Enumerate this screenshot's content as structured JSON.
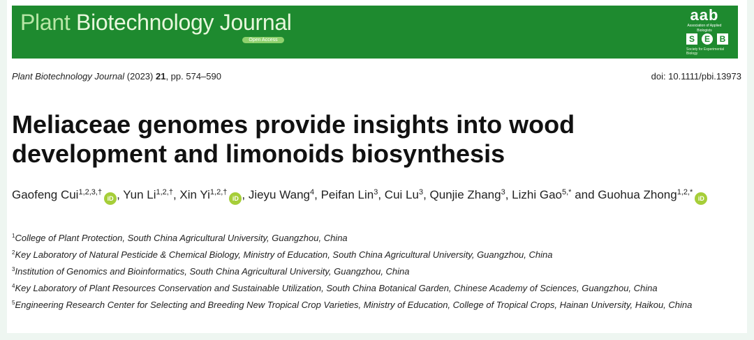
{
  "header": {
    "journal_plant": "Plant",
    "journal_rest": " Biotechnology Journal",
    "open_access": "Open Access",
    "aab_logo": "aab",
    "aab_sub": "Association of Applied Biologists",
    "seb_letters": [
      "S",
      "E",
      "B"
    ],
    "seb_sub": "Society for Experimental Biology"
  },
  "citation": {
    "journal": "Plant Biotechnology Journal",
    "year": " (2023) ",
    "volume": "21",
    "pages": ", pp. 574–590",
    "doi": "doi: 10.1111/pbi.13973"
  },
  "title": {
    "line1": "Meliaceae genomes provide insights into wood",
    "line2": "development and limonoids biosynthesis"
  },
  "orcid_label": "iD",
  "authors": [
    {
      "name": "Gaofeng Cui",
      "sup": "1,2,3,†",
      "orcid": true,
      "sep": ", "
    },
    {
      "name": "Yun Li",
      "sup": "1,2,†",
      "orcid": false,
      "sep": ", "
    },
    {
      "name": "Xin Yi",
      "sup": "1,2,†",
      "orcid": true,
      "sep": ", "
    },
    {
      "name": "Jieyu Wang",
      "sup": "4",
      "orcid": false,
      "sep": ", "
    },
    {
      "name": "Peifan Lin",
      "sup": "3",
      "orcid": false,
      "sep": ", "
    },
    {
      "name": "Cui Lu",
      "sup": "3",
      "orcid": false,
      "sep": ", "
    },
    {
      "name": "Qunjie Zhang",
      "sup": "3",
      "orcid": false,
      "sep": ", "
    },
    {
      "name": "Lizhi Gao",
      "sup": "5,*",
      "orcid": false,
      "sep": " and "
    },
    {
      "name": "Guohua Zhong",
      "sup": "1,2,*",
      "orcid": true,
      "sep": ""
    }
  ],
  "affiliations": [
    {
      "num": "1",
      "text": "College of Plant Protection, South China Agricultural University, Guangzhou, China"
    },
    {
      "num": "2",
      "text": "Key Laboratory of Natural Pesticide & Chemical Biology, Ministry of Education, South China Agricultural University, Guangzhou, China"
    },
    {
      "num": "3",
      "text": "Institution of Genomics and Bioinformatics, South China Agricultural University, Guangzhou, China"
    },
    {
      "num": "4",
      "text": "Key Laboratory of Plant Resources Conservation and Sustainable Utilization, South China Botanical Garden, Chinese Academy of Sciences, Guangzhou, China"
    },
    {
      "num": "5",
      "text": "Engineering Research Center for Selecting and Breeding New Tropical Crop Varieties, Ministry of Education, College of Tropical Crops, Hainan University, Haikou, China"
    }
  ]
}
